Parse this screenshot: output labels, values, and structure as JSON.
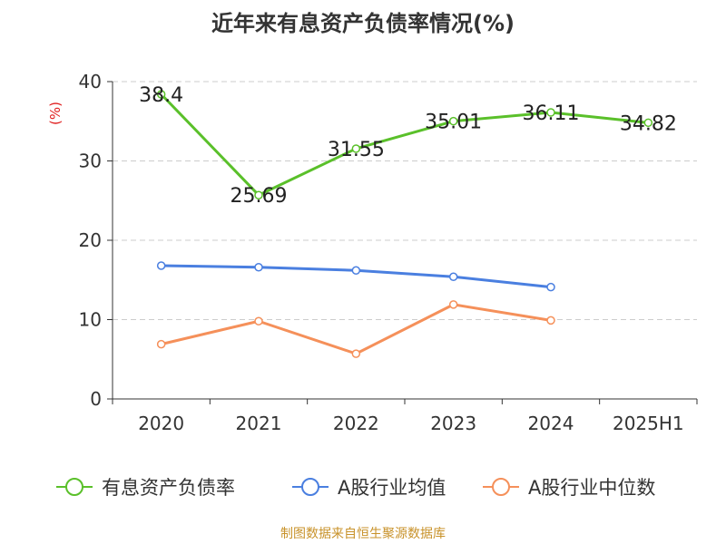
{
  "title": "近年来有息资产负债率情况(%)",
  "source": "制图数据来自恒生聚源数据库",
  "colors": {
    "green": "#5ac02a",
    "blue": "#4a7fe0",
    "orange": "#f5905a",
    "axis": "#333333",
    "grid": "#cccccc",
    "unit": "#e02020",
    "source": "#c8922a"
  },
  "chart_data": {
    "type": "line",
    "title": "近年来有息资产负债率情况(%)",
    "ylabel": "(%)",
    "xlabel": "",
    "categories": [
      "2020",
      "2021",
      "2022",
      "2023",
      "2024",
      "2025H1"
    ],
    "ylim": [
      0,
      40
    ],
    "yticks": [
      "0",
      "10",
      "20",
      "30",
      "40"
    ],
    "grid": true,
    "legend_position": "bottom",
    "series": [
      {
        "name": "有息资产负债率",
        "color": "#5ac02a",
        "values": [
          38.4,
          25.69,
          31.55,
          35.01,
          36.11,
          34.82
        ],
        "labels": [
          "38.4",
          "25.69",
          "31.55",
          "35.01",
          "36.11",
          "34.82"
        ]
      },
      {
        "name": "A股行业均值",
        "color": "#4a7fe0",
        "values": [
          16.8,
          16.6,
          16.2,
          15.4,
          14.1,
          null
        ]
      },
      {
        "name": "A股行业中位数",
        "color": "#f5905a",
        "values": [
          6.9,
          9.8,
          5.7,
          11.9,
          9.9,
          null
        ]
      }
    ]
  }
}
